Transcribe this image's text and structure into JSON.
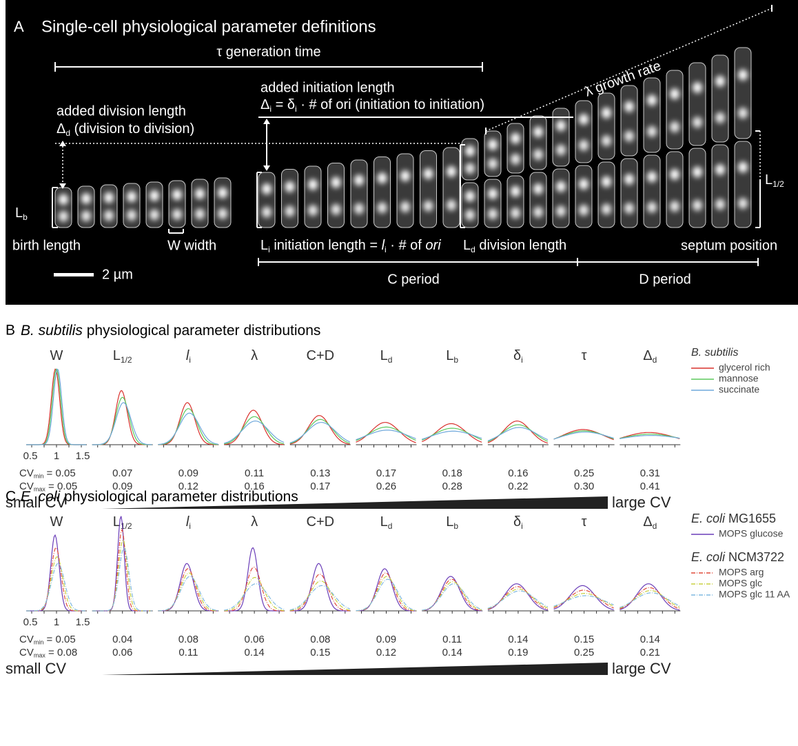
{
  "panel_a": {
    "letter": "A",
    "title": "Single-cell physiological parameter definitions",
    "generation_time": "τ generation time",
    "added_initiation_label": "added initiation length",
    "added_initiation_formula": [
      "Δ",
      "i",
      " = δ",
      "i",
      " · # of ori (initiation to initiation)"
    ],
    "growth_rate": "λ growth rate",
    "added_division_label": "added division length",
    "added_division_formula": [
      "Δ",
      "d",
      " (division to division)"
    ],
    "birth_length_symbol": [
      "L",
      "b"
    ],
    "birth_length": "birth length",
    "width": "W width",
    "initiation_length": [
      "L",
      "i",
      " initiation length = ",
      "l",
      "i",
      " · # of ",
      "ori"
    ],
    "division_length": [
      "L",
      "d",
      " division length"
    ],
    "septum_position": "septum position",
    "half_length_symbol": [
      "L",
      "1/2"
    ],
    "scale_bar": "2 µm",
    "c_period": "C period",
    "d_period": "D period"
  },
  "panel_b": {
    "letter": "B",
    "title": [
      "B. subtilis",
      " physiological parameter distributions"
    ],
    "parameters": [
      [
        "W"
      ],
      [
        "L",
        "1/2"
      ],
      [
        "l",
        "i"
      ],
      [
        "λ"
      ],
      [
        "C+D"
      ],
      [
        "L",
        "d"
      ],
      [
        "L",
        "b"
      ],
      [
        "δ",
        "i"
      ],
      [
        "τ"
      ],
      [
        "Δ",
        "d"
      ]
    ],
    "x_ticks": [
      "0.5",
      "1",
      "1.5"
    ],
    "cv_rows": [
      {
        "label": [
          "CV",
          "min",
          " = "
        ],
        "values": [
          "0.05",
          "0.07",
          "0.09",
          "0.11",
          "0.13",
          "0.17",
          "0.18",
          "0.16",
          "0.25",
          "0.31"
        ]
      },
      {
        "label": [
          "CV",
          "max",
          " = "
        ],
        "values": [
          "0.05",
          "0.09",
          "0.12",
          "0.16",
          "0.17",
          "0.26",
          "0.28",
          "0.22",
          "0.30",
          "0.41"
        ]
      }
    ],
    "scale_left": "small CV",
    "scale_right": "large CV",
    "legend": [
      {
        "title": [
          "B. subtilis"
        ],
        "series": [
          {
            "name": "glycerol rich",
            "color": "#d9302c",
            "line_style": "solid"
          },
          {
            "name": "mannose",
            "color": "#5cc85c",
            "line_style": "solid"
          },
          {
            "name": "succinate",
            "color": "#6fa8dc",
            "line_style": "solid"
          }
        ]
      }
    ]
  },
  "panel_c": {
    "letter": "C",
    "title": [
      "E. coli",
      " physiological parameter distributions"
    ],
    "parameters": [
      [
        "W"
      ],
      [
        "L",
        "1/2"
      ],
      [
        "l",
        "i"
      ],
      [
        "λ"
      ],
      [
        "C+D"
      ],
      [
        "L",
        "d"
      ],
      [
        "L",
        "b"
      ],
      [
        "δ",
        "i"
      ],
      [
        "τ"
      ],
      [
        "Δ",
        "d"
      ]
    ],
    "x_ticks": [
      "0.5",
      "1",
      "1.5"
    ],
    "cv_rows": [
      {
        "label": [
          "CV",
          "min",
          " = "
        ],
        "values": [
          "0.05",
          "0.04",
          "0.08",
          "0.06",
          "0.08",
          "0.09",
          "0.11",
          "0.14",
          "0.15",
          "0.14"
        ]
      },
      {
        "label": [
          "CV",
          "max",
          " = "
        ],
        "values": [
          "0.08",
          "0.06",
          "0.11",
          "0.14",
          "0.15",
          "0.12",
          "0.14",
          "0.19",
          "0.25",
          "0.21"
        ]
      }
    ],
    "scale_left": "small CV",
    "scale_right": "large CV",
    "legend": [
      {
        "title": [
          "E. coli",
          " MG1655"
        ],
        "series": [
          {
            "name": "MOPS glucose",
            "color": "#6a3db8",
            "line_style": "solid"
          }
        ]
      },
      {
        "title": [
          "E. coli",
          " NCM3722"
        ],
        "series": [
          {
            "name": "MOPS arg",
            "color": "#e04a3a",
            "line_style": "dash-dot"
          },
          {
            "name": "MOPS glc",
            "color": "#c8d040",
            "line_style": "dash-dot"
          },
          {
            "name": "MOPS glc 11 AA",
            "color": "#7fb8e0",
            "line_style": "dash-dot"
          }
        ]
      }
    ]
  }
}
